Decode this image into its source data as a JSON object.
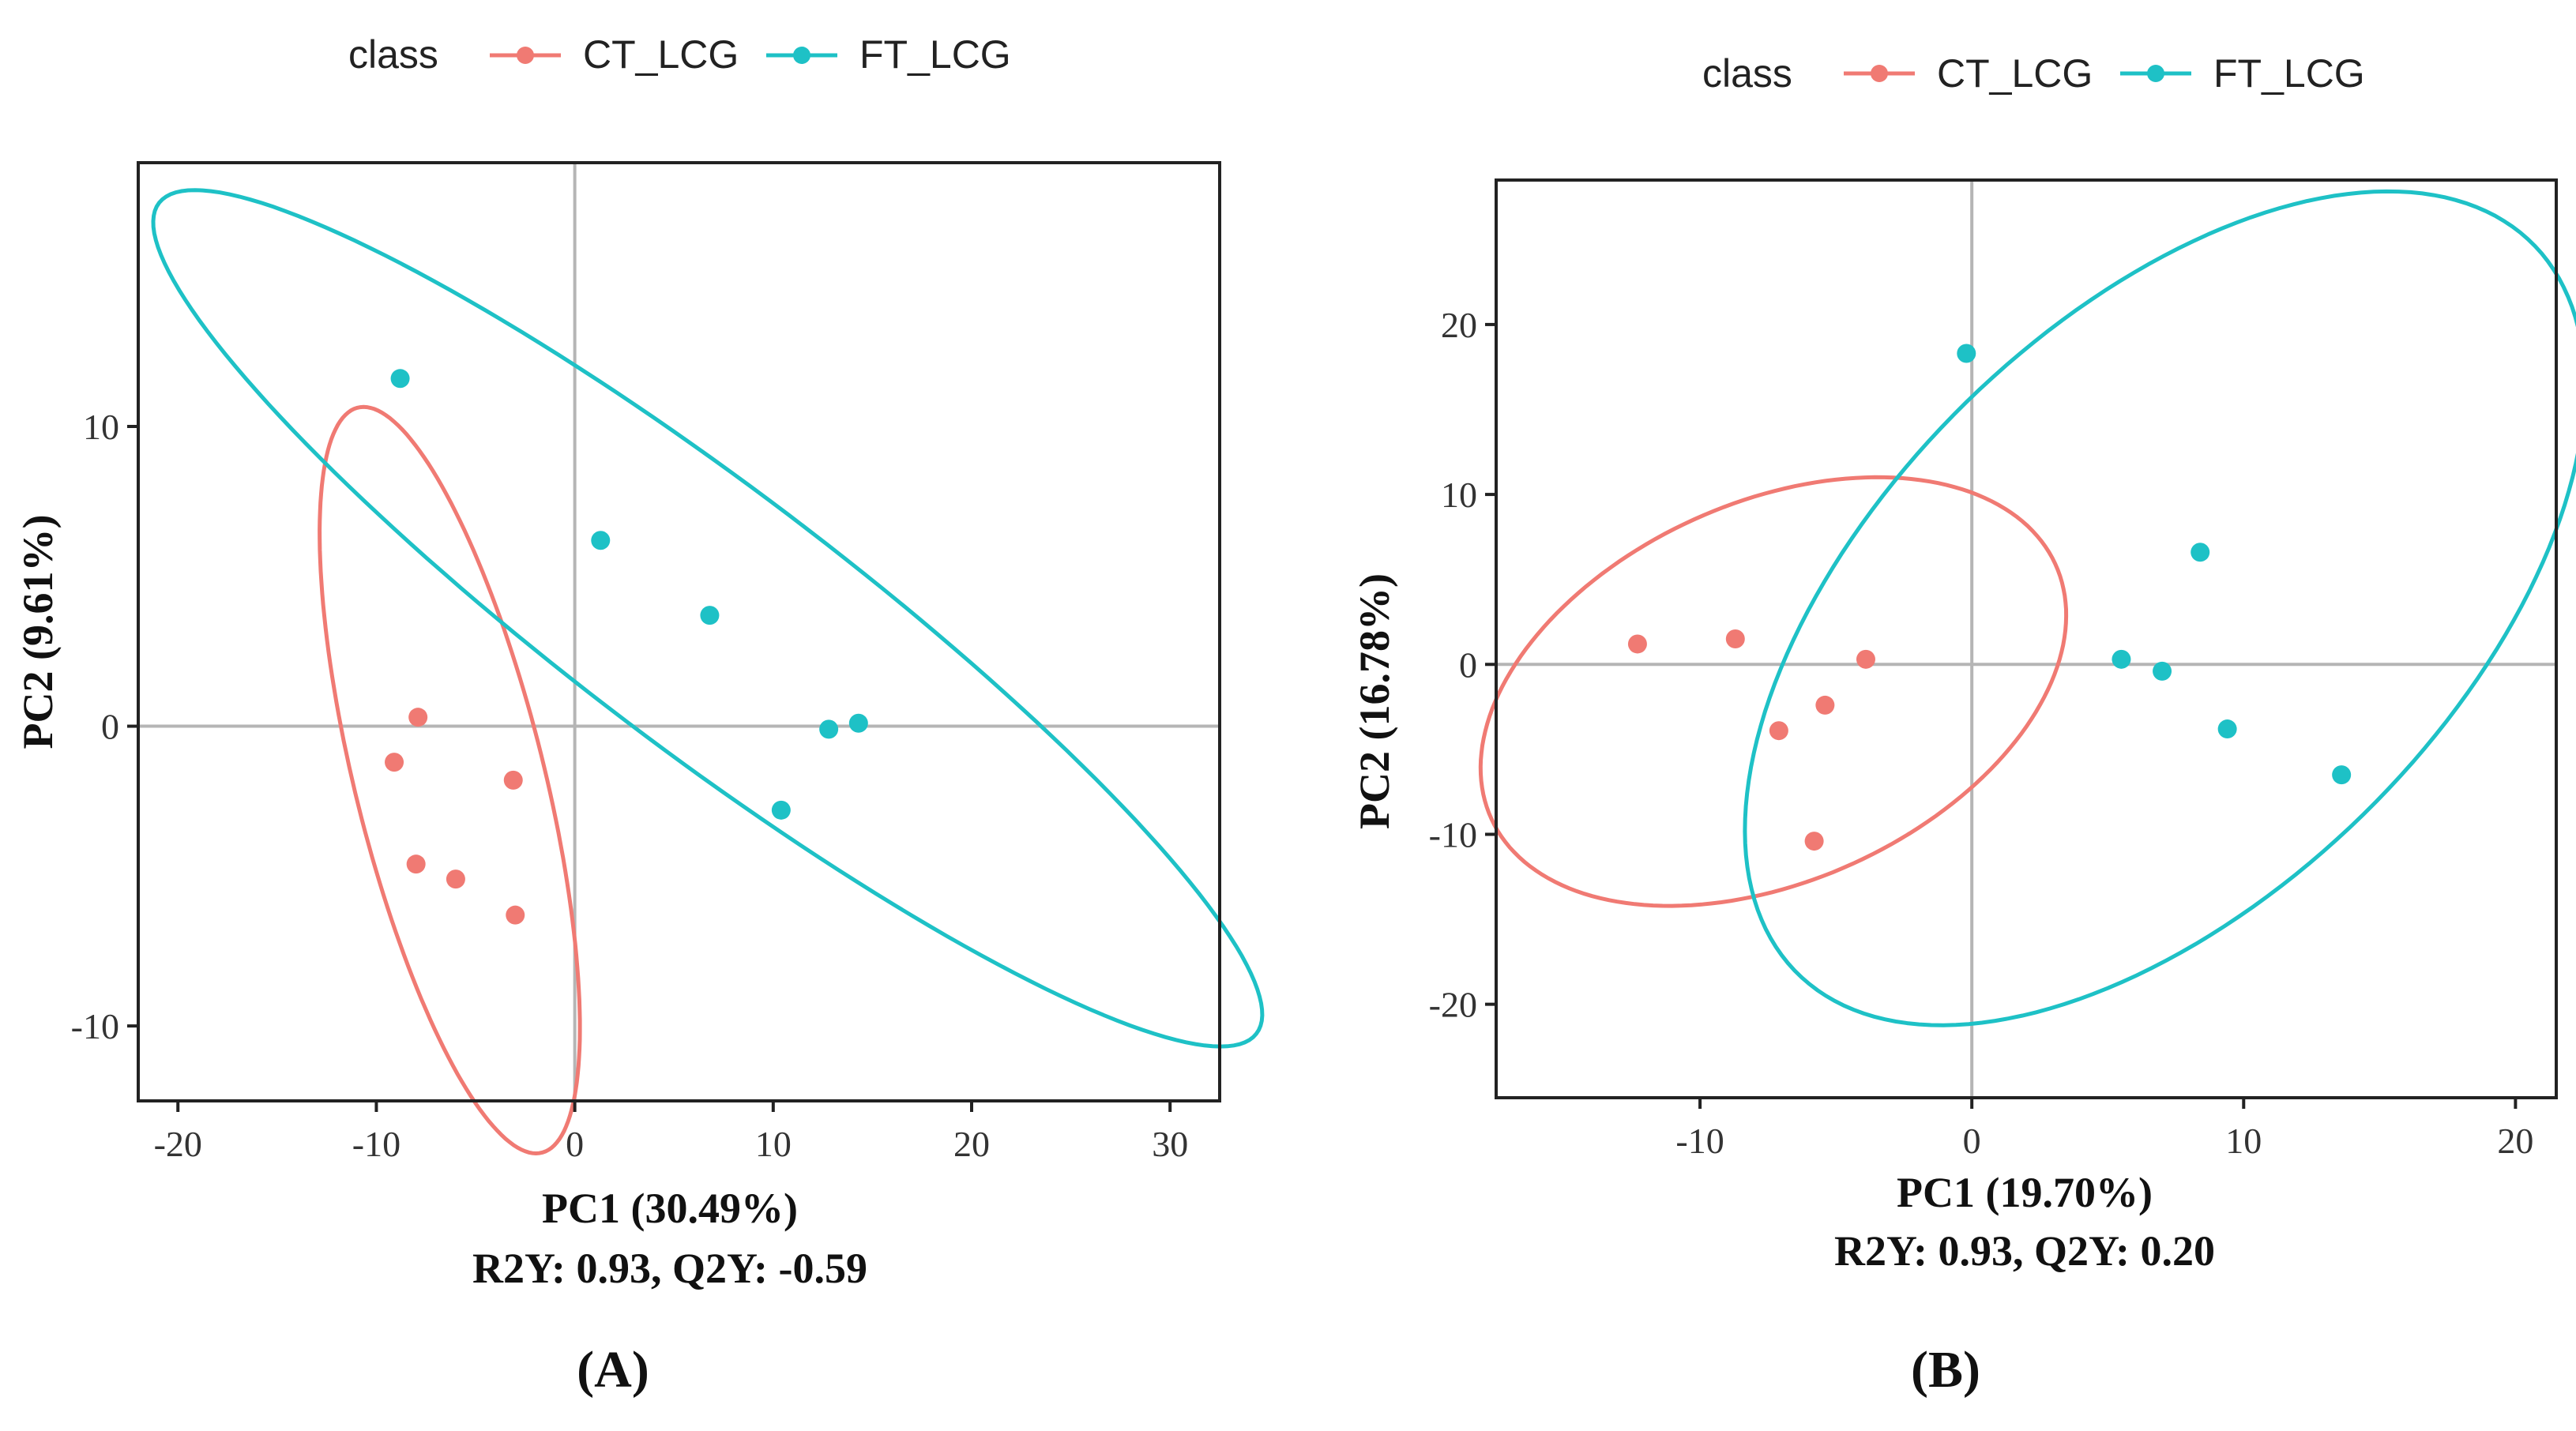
{
  "chart_data": [
    {
      "type": "scatter",
      "panel_label": "A",
      "legend_title": "class",
      "legend": [
        "CT_LCG",
        "FT_LCG"
      ],
      "xlabel": "PC1 (30.49%)",
      "ylabel": "PC2 (9.61%)",
      "subtitle": "R2Y: 0.93, Q2Y: -0.59",
      "xlim": [
        -22,
        32.5
      ],
      "ylim": [
        -12.5,
        18.8
      ],
      "xticks": [
        -20,
        -10,
        0,
        10,
        20,
        30
      ],
      "yticks": [
        -10,
        0,
        10
      ],
      "grid": false,
      "series": [
        {
          "name": "CT_LCG",
          "color": "#f07a73",
          "points": [
            [
              -7.9,
              0.3
            ],
            [
              -9.1,
              -1.2
            ],
            [
              -3.1,
              -1.8
            ],
            [
              -8.0,
              -4.6
            ],
            [
              -6.0,
              -5.1
            ],
            [
              -3.0,
              -6.3
            ]
          ],
          "ellipse": {
            "cx": -6.3,
            "cy": -1.8,
            "rx": 13.3,
            "ry": 4.6,
            "angle_deg": -68
          }
        },
        {
          "name": "FT_LCG",
          "color": "#1ec1c6",
          "points": [
            [
              -8.8,
              11.6
            ],
            [
              1.3,
              6.2
            ],
            [
              6.8,
              3.7
            ],
            [
              12.8,
              -0.1
            ],
            [
              14.3,
              0.1
            ],
            [
              10.4,
              -2.8
            ]
          ],
          "ellipse": {
            "cx": 6.7,
            "cy": 3.6,
            "rx": 31.0,
            "ry": 4.9,
            "angle_deg": -26
          }
        }
      ]
    },
    {
      "type": "scatter",
      "panel_label": "B",
      "legend_title": "class",
      "legend": [
        "CT_LCG",
        "FT_LCG"
      ],
      "xlabel": "PC1 (19.70%)",
      "ylabel": "PC2 (16.78%)",
      "subtitle": "R2Y: 0.93, Q2Y: 0.20",
      "xlim": [
        -17.5,
        21.5
      ],
      "ylim": [
        -25.5,
        28.5
      ],
      "xticks": [
        -10,
        0,
        10,
        20
      ],
      "yticks": [
        -20,
        -10,
        0,
        10,
        20
      ],
      "grid": false,
      "series": [
        {
          "name": "CT_LCG",
          "color": "#f07a73",
          "points": [
            [
              -12.3,
              1.2
            ],
            [
              -8.7,
              1.5
            ],
            [
              -3.9,
              0.3
            ],
            [
              -5.4,
              -2.4
            ],
            [
              -7.1,
              -3.9
            ],
            [
              -5.8,
              -10.4
            ]
          ],
          "ellipse": {
            "cx": -7.3,
            "cy": -1.6,
            "rx": 9.2,
            "ry": 13.8,
            "angle_deg": -33
          }
        },
        {
          "name": "FT_LCG",
          "color": "#1ec1c6",
          "points": [
            [
              -0.2,
              18.3
            ],
            [
              8.4,
              6.6
            ],
            [
              5.5,
              0.3
            ],
            [
              7.0,
              -0.4
            ],
            [
              9.4,
              -3.8
            ],
            [
              13.6,
              -6.5
            ]
          ],
          "ellipse": {
            "cx": 7.1,
            "cy": 3.3,
            "rx": 12.2,
            "ry": 26.3,
            "angle_deg": -24
          }
        }
      ]
    }
  ]
}
